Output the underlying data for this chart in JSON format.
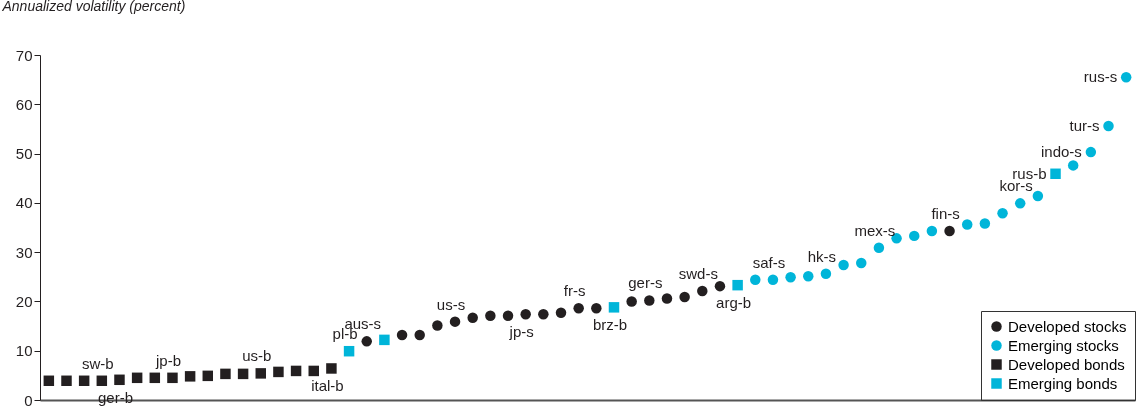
{
  "chart_data": {
    "type": "scatter",
    "ylabel": "Annualized volatility (percent)",
    "categories": [
      null,
      null,
      null,
      null,
      null,
      null,
      null,
      null,
      null,
      null,
      null,
      null,
      null,
      null,
      null,
      null,
      null,
      null,
      null,
      null,
      null,
      null,
      null,
      null,
      null,
      null,
      null,
      null,
      null,
      null,
      null,
      null,
      null,
      null,
      null,
      null,
      null,
      null,
      null,
      null,
      null,
      null,
      null,
      null,
      null,
      null,
      null,
      null,
      null,
      null,
      null,
      null,
      null,
      null,
      null,
      null,
      null,
      null,
      null,
      null,
      null,
      null
    ],
    "annotations": [
      {
        "text": "sw-b",
        "y": 3.9
      },
      {
        "text": "ger-b",
        "y": 4.1
      },
      {
        "text": "jp-b",
        "y": 4.5
      },
      {
        "text": "us-b",
        "y": 5.4
      },
      {
        "text": "ital-b",
        "y": 6.4
      },
      {
        "text": "pl-b",
        "y": 9.9
      },
      {
        "text": "aus-s",
        "y": 11.9
      },
      {
        "text": "us-s",
        "y": 15.9
      },
      {
        "text": "jp-s",
        "y": 17.4
      },
      {
        "text": "fr-s",
        "y": 18.6
      },
      {
        "text": "brz-b",
        "y": 18.8
      },
      {
        "text": "ger-s",
        "y": 20.2
      },
      {
        "text": "swd-s",
        "y": 22.1
      },
      {
        "text": "arg-b",
        "y": 23.3
      },
      {
        "text": "saf-s",
        "y": 24.4
      },
      {
        "text": "hk-s",
        "y": 25.6
      },
      {
        "text": "mex-s",
        "y": 30.9
      },
      {
        "text": "fin-s",
        "y": 34.3
      },
      {
        "text": "kor-s",
        "y": 39.9
      },
      "rus-b",
      "indo-s",
      "tur-s",
      "rus-s"
    ],
    "series": [
      {
        "name": "Developed stocks",
        "color": "#231f20",
        "marker": "circle",
        "values": [
          null,
          null,
          null,
          null,
          null,
          null,
          null,
          null,
          null,
          null,
          null,
          null,
          null,
          null,
          null,
          null,
          null,
          null,
          11.9,
          null,
          13.2,
          13.2,
          15.1,
          15.9,
          16.7,
          17.1,
          17.1,
          17.4,
          17.4,
          17.7,
          18.6,
          18.6,
          null,
          20.0,
          20.2,
          20.6,
          20.9,
          22.1,
          23.1,
          null,
          null,
          null,
          null,
          null,
          null,
          null,
          null,
          null,
          null,
          null,
          null,
          34.3,
          null,
          null,
          null,
          null,
          null,
          null,
          null,
          null,
          null,
          null
        ]
      },
      {
        "name": "Emerging stocks",
        "color": "#00b5d9",
        "marker": "circle",
        "values": [
          null,
          null,
          null,
          null,
          null,
          null,
          null,
          null,
          null,
          null,
          null,
          null,
          null,
          null,
          null,
          null,
          null,
          null,
          null,
          null,
          null,
          null,
          null,
          null,
          null,
          null,
          null,
          null,
          null,
          null,
          null,
          null,
          null,
          null,
          null,
          null,
          null,
          null,
          null,
          null,
          24.4,
          24.4,
          24.9,
          25.1,
          25.6,
          27.4,
          27.8,
          30.9,
          32.8,
          33.3,
          34.3,
          null,
          35.6,
          35.8,
          37.9,
          39.9,
          41.4,
          null,
          47.6,
          50.3,
          55.6,
          65.5
        ]
      },
      {
        "name": "Developed bonds",
        "color": "#231f20",
        "marker": "square",
        "values": [
          3.9,
          3.9,
          3.9,
          3.9,
          4.1,
          4.5,
          4.5,
          4.5,
          4.8,
          4.9,
          5.3,
          5.3,
          5.4,
          5.7,
          5.9,
          5.9,
          6.4,
          null,
          null,
          null,
          null,
          null,
          null,
          null,
          null,
          null,
          null,
          null,
          null,
          null,
          null,
          null,
          null,
          null,
          null,
          null,
          null,
          null,
          null,
          null,
          null,
          null,
          null,
          null,
          null,
          null,
          null,
          null,
          null,
          null,
          null,
          null,
          null,
          null,
          null,
          null,
          null,
          null,
          null,
          null,
          null,
          null
        ]
      },
      {
        "name": "Emerging bonds",
        "color": "#00b5d9",
        "marker": "square",
        "values": [
          null,
          null,
          null,
          null,
          null,
          null,
          null,
          null,
          null,
          null,
          null,
          null,
          null,
          null,
          null,
          null,
          null,
          9.9,
          null,
          12.2,
          null,
          null,
          null,
          null,
          null,
          null,
          null,
          null,
          null,
          null,
          null,
          null,
          18.8,
          null,
          null,
          null,
          null,
          null,
          null,
          23.3,
          null,
          null,
          null,
          null,
          null,
          null,
          null,
          null,
          null,
          null,
          null,
          null,
          null,
          null,
          null,
          null,
          null,
          45.9,
          null,
          null,
          null,
          null
        ]
      }
    ],
    "ylim": [
      0,
      70
    ],
    "yticks": [
      0,
      10,
      20,
      30,
      40,
      50,
      60,
      70
    ],
    "tick_labels": "y",
    "grid": false,
    "legend": "bottom right"
  }
}
